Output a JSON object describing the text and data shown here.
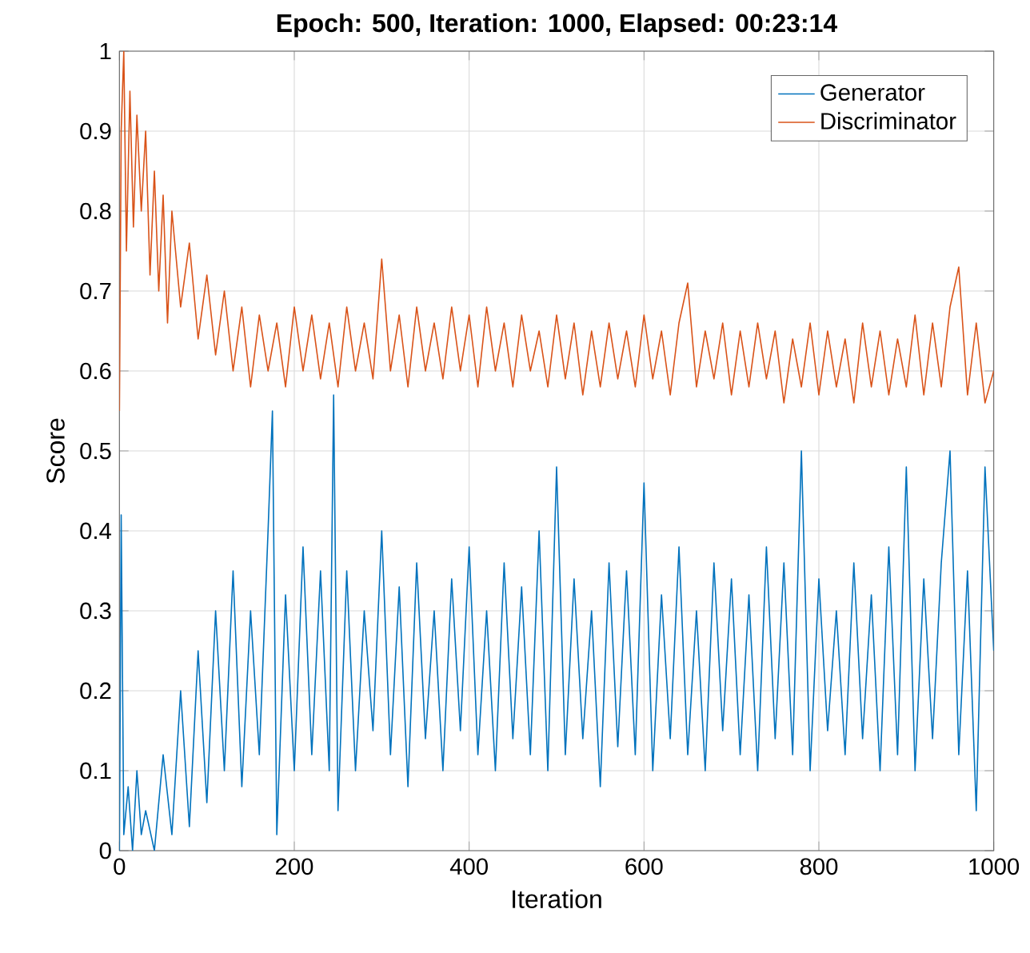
{
  "chart_data": {
    "type": "line",
    "title": "Epoch: 500, Iteration: 1000, Elapsed: 00:23:14",
    "xlabel": "Iteration",
    "ylabel": "Score",
    "xlim": [
      0,
      1000
    ],
    "xticks": [
      0,
      200,
      400,
      600,
      800,
      1000
    ],
    "ylim": [
      0,
      1
    ],
    "yticks": [
      0,
      0.1,
      0.2,
      0.3,
      0.4,
      0.5,
      0.6,
      0.7,
      0.8,
      0.9,
      1
    ],
    "grid": true,
    "legend": "top right",
    "line_style": "solid",
    "series": [
      {
        "name": "Generator",
        "color": "#0072bd",
        "x": [
          0,
          2,
          5,
          10,
          15,
          20,
          25,
          30,
          40,
          50,
          60,
          70,
          80,
          90,
          100,
          110,
          120,
          130,
          140,
          150,
          160,
          170,
          175,
          180,
          190,
          200,
          210,
          220,
          230,
          240,
          245,
          250,
          260,
          270,
          280,
          290,
          300,
          310,
          320,
          330,
          340,
          350,
          360,
          370,
          380,
          390,
          400,
          410,
          420,
          430,
          440,
          450,
          460,
          470,
          480,
          490,
          500,
          510,
          520,
          530,
          540,
          550,
          560,
          570,
          580,
          590,
          600,
          610,
          620,
          630,
          640,
          650,
          660,
          670,
          680,
          690,
          700,
          710,
          720,
          730,
          740,
          750,
          760,
          770,
          780,
          790,
          800,
          810,
          820,
          830,
          840,
          850,
          860,
          870,
          880,
          890,
          900,
          910,
          920,
          930,
          940,
          950,
          960,
          970,
          980,
          990,
          1000
        ],
        "values": [
          0,
          0.42,
          0.02,
          0.08,
          0.0,
          0.1,
          0.02,
          0.05,
          0.0,
          0.12,
          0.02,
          0.2,
          0.03,
          0.25,
          0.06,
          0.3,
          0.1,
          0.35,
          0.08,
          0.3,
          0.12,
          0.4,
          0.55,
          0.02,
          0.32,
          0.1,
          0.38,
          0.12,
          0.35,
          0.1,
          0.57,
          0.05,
          0.35,
          0.1,
          0.3,
          0.15,
          0.4,
          0.12,
          0.33,
          0.08,
          0.36,
          0.14,
          0.3,
          0.1,
          0.34,
          0.15,
          0.38,
          0.12,
          0.3,
          0.1,
          0.36,
          0.14,
          0.33,
          0.12,
          0.4,
          0.1,
          0.48,
          0.12,
          0.34,
          0.14,
          0.3,
          0.08,
          0.36,
          0.13,
          0.35,
          0.12,
          0.46,
          0.1,
          0.32,
          0.14,
          0.38,
          0.12,
          0.3,
          0.1,
          0.36,
          0.15,
          0.34,
          0.12,
          0.32,
          0.1,
          0.38,
          0.14,
          0.36,
          0.12,
          0.5,
          0.1,
          0.34,
          0.15,
          0.3,
          0.12,
          0.36,
          0.14,
          0.32,
          0.1,
          0.38,
          0.12,
          0.48,
          0.1,
          0.34,
          0.14,
          0.36,
          0.5,
          0.12,
          0.35,
          0.05,
          0.48,
          0.25
        ]
      },
      {
        "name": "Discriminator",
        "color": "#d95319",
        "x": [
          0,
          2,
          5,
          8,
          12,
          16,
          20,
          25,
          30,
          35,
          40,
          45,
          50,
          55,
          60,
          70,
          80,
          90,
          100,
          110,
          120,
          130,
          140,
          150,
          160,
          170,
          180,
          190,
          200,
          210,
          220,
          230,
          240,
          250,
          260,
          270,
          280,
          290,
          300,
          310,
          320,
          330,
          340,
          350,
          360,
          370,
          380,
          390,
          400,
          410,
          420,
          430,
          440,
          450,
          460,
          470,
          480,
          490,
          500,
          510,
          520,
          530,
          540,
          550,
          560,
          570,
          580,
          590,
          600,
          610,
          620,
          630,
          640,
          650,
          660,
          670,
          680,
          690,
          700,
          710,
          720,
          730,
          740,
          750,
          760,
          770,
          780,
          790,
          800,
          810,
          820,
          830,
          840,
          850,
          860,
          870,
          880,
          890,
          900,
          910,
          920,
          930,
          940,
          950,
          960,
          970,
          980,
          990,
          1000
        ],
        "values": [
          0.55,
          0.9,
          1.0,
          0.75,
          0.95,
          0.78,
          0.92,
          0.8,
          0.9,
          0.72,
          0.85,
          0.7,
          0.82,
          0.66,
          0.8,
          0.68,
          0.76,
          0.64,
          0.72,
          0.62,
          0.7,
          0.6,
          0.68,
          0.58,
          0.67,
          0.6,
          0.66,
          0.58,
          0.68,
          0.6,
          0.67,
          0.59,
          0.66,
          0.58,
          0.68,
          0.6,
          0.66,
          0.59,
          0.74,
          0.6,
          0.67,
          0.58,
          0.68,
          0.6,
          0.66,
          0.59,
          0.68,
          0.6,
          0.67,
          0.58,
          0.68,
          0.6,
          0.66,
          0.58,
          0.67,
          0.6,
          0.65,
          0.58,
          0.67,
          0.59,
          0.66,
          0.57,
          0.65,
          0.58,
          0.66,
          0.59,
          0.65,
          0.58,
          0.67,
          0.59,
          0.65,
          0.57,
          0.66,
          0.71,
          0.58,
          0.65,
          0.59,
          0.66,
          0.57,
          0.65,
          0.58,
          0.66,
          0.59,
          0.65,
          0.56,
          0.64,
          0.58,
          0.66,
          0.57,
          0.65,
          0.58,
          0.64,
          0.56,
          0.66,
          0.58,
          0.65,
          0.57,
          0.64,
          0.58,
          0.67,
          0.57,
          0.66,
          0.58,
          0.68,
          0.73,
          0.57,
          0.66,
          0.56,
          0.6
        ]
      }
    ]
  }
}
